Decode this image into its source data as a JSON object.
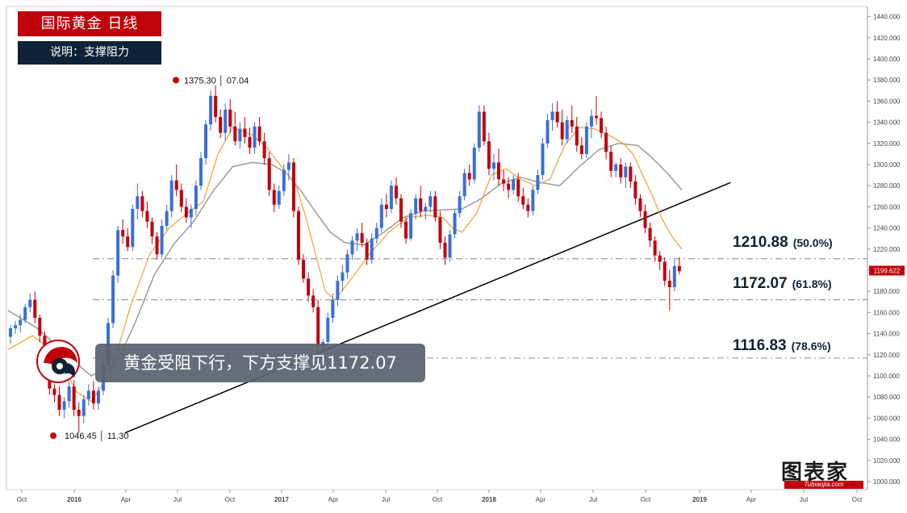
{
  "header": {
    "title": "国际黄金  日线",
    "subtitle": "说明：支撑阻力"
  },
  "callout": {
    "text": "黄金受阻下行，下方支撑见1172.07"
  },
  "annotations": {
    "high_label": "1375.30 │ 07.04",
    "low_label": "1046.45 │ 11.30"
  },
  "fib_levels": [
    {
      "value": "1210.88",
      "pct": "(50.0%)"
    },
    {
      "value": "1172.07",
      "pct": "(61.8%)"
    },
    {
      "value": "1116.83",
      "pct": "(78.6%)"
    }
  ],
  "brand": {
    "name": "图表家",
    "sub": "Tubiaojia.com"
  },
  "chart_data": {
    "type": "candlestick",
    "title": "国际黄金  日线",
    "ylim": [
      990,
      1447
    ],
    "y_ticks": [
      "1000.000",
      "1020.000",
      "1040.000",
      "1060.000",
      "1080.000",
      "1100.000",
      "1120.000",
      "1140.000",
      "1160.000",
      "1180.000",
      "1200.000",
      "1220.000",
      "1240.000",
      "1260.000",
      "1280.000",
      "1300.000",
      "1320.000",
      "1340.000",
      "1360.000",
      "1380.000",
      "1400.000",
      "1420.000",
      "1440.000"
    ],
    "x_ticks": [
      "Oct",
      "2016",
      "Apr",
      "Jul",
      "Oct",
      "2017",
      "Apr",
      "Jul",
      "Oct",
      "2018",
      "Apr",
      "Jul",
      "Oct",
      "2019",
      "Apr",
      "Jul",
      "Oct"
    ],
    "current_price": "1199.622",
    "colors": {
      "up": "#3a6fd8",
      "down": "#c0000b",
      "ma_fast": "#f5a742",
      "ma_slow": "#9b9b9b",
      "trendline": "#000000",
      "fib": "#9a9a9a"
    },
    "candles": [
      [
        1137,
        1148,
        1130,
        1145
      ],
      [
        1145,
        1152,
        1140,
        1148
      ],
      [
        1148,
        1158,
        1141,
        1153
      ],
      [
        1153,
        1168,
        1150,
        1165
      ],
      [
        1165,
        1178,
        1160,
        1172
      ],
      [
        1172,
        1180,
        1150,
        1155
      ],
      [
        1155,
        1158,
        1132,
        1138
      ],
      [
        1138,
        1142,
        1105,
        1110
      ],
      [
        1110,
        1115,
        1082,
        1088
      ],
      [
        1088,
        1092,
        1075,
        1082
      ],
      [
        1082,
        1090,
        1062,
        1068
      ],
      [
        1068,
        1080,
        1060,
        1076
      ],
      [
        1076,
        1095,
        1070,
        1090
      ],
      [
        1090,
        1096,
        1062,
        1068
      ],
      [
        1068,
        1075,
        1046,
        1062
      ],
      [
        1062,
        1082,
        1055,
        1078
      ],
      [
        1078,
        1092,
        1072,
        1086
      ],
      [
        1086,
        1095,
        1068,
        1074
      ],
      [
        1074,
        1090,
        1068,
        1086
      ],
      [
        1086,
        1115,
        1082,
        1110
      ],
      [
        1110,
        1155,
        1105,
        1150
      ],
      [
        1150,
        1200,
        1145,
        1195
      ],
      [
        1195,
        1242,
        1188,
        1238
      ],
      [
        1238,
        1248,
        1225,
        1232
      ],
      [
        1232,
        1240,
        1218,
        1222
      ],
      [
        1222,
        1262,
        1218,
        1258
      ],
      [
        1258,
        1282,
        1248,
        1270
      ],
      [
        1270,
        1275,
        1250,
        1256
      ],
      [
        1256,
        1265,
        1240,
        1246
      ],
      [
        1246,
        1250,
        1225,
        1232
      ],
      [
        1232,
        1236,
        1210,
        1215
      ],
      [
        1215,
        1248,
        1212,
        1242
      ],
      [
        1242,
        1262,
        1238,
        1256
      ],
      [
        1256,
        1290,
        1250,
        1285
      ],
      [
        1285,
        1300,
        1270,
        1276
      ],
      [
        1276,
        1282,
        1255,
        1260
      ],
      [
        1260,
        1268,
        1245,
        1250
      ],
      [
        1250,
        1262,
        1240,
        1258
      ],
      [
        1258,
        1285,
        1252,
        1280
      ],
      [
        1280,
        1312,
        1276,
        1306
      ],
      [
        1306,
        1342,
        1300,
        1338
      ],
      [
        1338,
        1370,
        1332,
        1365
      ],
      [
        1365,
        1375,
        1340,
        1345
      ],
      [
        1345,
        1352,
        1325,
        1330
      ],
      [
        1330,
        1358,
        1322,
        1352
      ],
      [
        1352,
        1362,
        1330,
        1336
      ],
      [
        1336,
        1350,
        1318,
        1322
      ],
      [
        1322,
        1340,
        1315,
        1334
      ],
      [
        1334,
        1345,
        1320,
        1326
      ],
      [
        1326,
        1335,
        1310,
        1316
      ],
      [
        1316,
        1340,
        1310,
        1336
      ],
      [
        1336,
        1345,
        1318,
        1322
      ],
      [
        1322,
        1330,
        1300,
        1306
      ],
      [
        1306,
        1312,
        1270,
        1276
      ],
      [
        1276,
        1282,
        1255,
        1262
      ],
      [
        1262,
        1280,
        1258,
        1275
      ],
      [
        1275,
        1300,
        1270,
        1295
      ],
      [
        1295,
        1310,
        1285,
        1302
      ],
      [
        1302,
        1306,
        1250,
        1256
      ],
      [
        1256,
        1260,
        1205,
        1210
      ],
      [
        1210,
        1215,
        1188,
        1192
      ],
      [
        1192,
        1198,
        1170,
        1176
      ],
      [
        1176,
        1182,
        1160,
        1165
      ],
      [
        1165,
        1172,
        1122,
        1128
      ],
      [
        1128,
        1135,
        1123,
        1132
      ],
      [
        1132,
        1160,
        1128,
        1155
      ],
      [
        1155,
        1178,
        1150,
        1172
      ],
      [
        1172,
        1195,
        1166,
        1190
      ],
      [
        1190,
        1205,
        1180,
        1198
      ],
      [
        1198,
        1220,
        1192,
        1215
      ],
      [
        1215,
        1232,
        1210,
        1228
      ],
      [
        1228,
        1240,
        1218,
        1235
      ],
      [
        1235,
        1245,
        1222,
        1226
      ],
      [
        1226,
        1230,
        1205,
        1210
      ],
      [
        1210,
        1235,
        1206,
        1230
      ],
      [
        1230,
        1245,
        1225,
        1240
      ],
      [
        1240,
        1268,
        1236,
        1262
      ],
      [
        1262,
        1272,
        1250,
        1258
      ],
      [
        1258,
        1285,
        1254,
        1280
      ],
      [
        1280,
        1288,
        1262,
        1268
      ],
      [
        1268,
        1272,
        1240,
        1246
      ],
      [
        1246,
        1250,
        1225,
        1230
      ],
      [
        1230,
        1258,
        1228,
        1254
      ],
      [
        1254,
        1272,
        1248,
        1268
      ],
      [
        1268,
        1280,
        1250,
        1256
      ],
      [
        1256,
        1264,
        1248,
        1260
      ],
      [
        1260,
        1275,
        1255,
        1270
      ],
      [
        1270,
        1275,
        1246,
        1250
      ],
      [
        1250,
        1256,
        1220,
        1226
      ],
      [
        1226,
        1232,
        1205,
        1212
      ],
      [
        1212,
        1238,
        1208,
        1234
      ],
      [
        1234,
        1258,
        1230,
        1254
      ],
      [
        1254,
        1275,
        1250,
        1270
      ],
      [
        1270,
        1296,
        1266,
        1292
      ],
      [
        1292,
        1300,
        1280,
        1286
      ],
      [
        1286,
        1320,
        1282,
        1316
      ],
      [
        1316,
        1356,
        1312,
        1350
      ],
      [
        1350,
        1356,
        1318,
        1322
      ],
      [
        1322,
        1330,
        1290,
        1296
      ],
      [
        1296,
        1310,
        1285,
        1302
      ],
      [
        1302,
        1315,
        1280,
        1286
      ],
      [
        1286,
        1295,
        1275,
        1282
      ],
      [
        1282,
        1288,
        1268,
        1276
      ],
      [
        1276,
        1290,
        1272,
        1286
      ],
      [
        1286,
        1292,
        1265,
        1270
      ],
      [
        1270,
        1278,
        1258,
        1262
      ],
      [
        1262,
        1268,
        1250,
        1256
      ],
      [
        1256,
        1280,
        1252,
        1276
      ],
      [
        1276,
        1295,
        1272,
        1290
      ],
      [
        1290,
        1325,
        1286,
        1320
      ],
      [
        1320,
        1348,
        1316,
        1342
      ],
      [
        1342,
        1358,
        1332,
        1350
      ],
      [
        1350,
        1360,
        1335,
        1340
      ],
      [
        1340,
        1352,
        1318,
        1324
      ],
      [
        1324,
        1346,
        1320,
        1342
      ],
      [
        1342,
        1356,
        1330,
        1336
      ],
      [
        1336,
        1345,
        1312,
        1318
      ],
      [
        1318,
        1326,
        1305,
        1310
      ],
      [
        1310,
        1340,
        1306,
        1336
      ],
      [
        1336,
        1352,
        1325,
        1346
      ],
      [
        1346,
        1365,
        1338,
        1344
      ],
      [
        1344,
        1350,
        1325,
        1330
      ],
      [
        1330,
        1336,
        1305,
        1312
      ],
      [
        1312,
        1318,
        1288,
        1294
      ],
      [
        1294,
        1302,
        1288,
        1300
      ],
      [
        1300,
        1306,
        1282,
        1288
      ],
      [
        1288,
        1302,
        1278,
        1298
      ],
      [
        1298,
        1302,
        1278,
        1284
      ],
      [
        1284,
        1290,
        1262,
        1268
      ],
      [
        1268,
        1272,
        1250,
        1256
      ],
      [
        1256,
        1262,
        1235,
        1240
      ],
      [
        1240,
        1245,
        1222,
        1228
      ],
      [
        1228,
        1232,
        1208,
        1214
      ],
      [
        1214,
        1218,
        1200,
        1208
      ],
      [
        1208,
        1212,
        1185,
        1190
      ],
      [
        1190,
        1200,
        1162,
        1184
      ],
      [
        1184,
        1210,
        1180,
        1204
      ],
      [
        1204,
        1212,
        1196,
        1199
      ]
    ],
    "ma_fast": [
      [
        0,
        1125
      ],
      [
        5,
        1138
      ],
      [
        10,
        1120
      ],
      [
        14,
        1085
      ],
      [
        17,
        1076
      ],
      [
        21,
        1102
      ],
      [
        25,
        1165
      ],
      [
        29,
        1215
      ],
      [
        33,
        1240
      ],
      [
        37,
        1255
      ],
      [
        40,
        1265
      ],
      [
        43,
        1310
      ],
      [
        46,
        1335
      ],
      [
        50,
        1328
      ],
      [
        53,
        1316
      ],
      [
        56,
        1298
      ],
      [
        59,
        1280
      ],
      [
        61,
        1250
      ],
      [
        63,
        1215
      ],
      [
        65,
        1180
      ],
      [
        67,
        1172
      ],
      [
        70,
        1190
      ],
      [
        74,
        1215
      ],
      [
        78,
        1236
      ],
      [
        82,
        1250
      ],
      [
        86,
        1252
      ],
      [
        89,
        1250
      ],
      [
        91,
        1240
      ],
      [
        93,
        1236
      ],
      [
        96,
        1254
      ],
      [
        99,
        1290
      ],
      [
        102,
        1296
      ],
      [
        105,
        1286
      ],
      [
        108,
        1280
      ],
      [
        111,
        1286
      ],
      [
        114,
        1318
      ],
      [
        117,
        1335
      ],
      [
        120,
        1334
      ],
      [
        123,
        1328
      ],
      [
        126,
        1320
      ],
      [
        128,
        1310
      ],
      [
        130,
        1290
      ],
      [
        132,
        1270
      ],
      [
        134,
        1248
      ],
      [
        136,
        1232
      ],
      [
        138,
        1220
      ]
    ],
    "ma_slow": [
      [
        0,
        1162
      ],
      [
        6,
        1145
      ],
      [
        12,
        1120
      ],
      [
        17,
        1100
      ],
      [
        22,
        1110
      ],
      [
        26,
        1150
      ],
      [
        30,
        1196
      ],
      [
        34,
        1225
      ],
      [
        38,
        1246
      ],
      [
        42,
        1275
      ],
      [
        46,
        1298
      ],
      [
        50,
        1302
      ],
      [
        54,
        1300
      ],
      [
        57,
        1292
      ],
      [
        60,
        1275
      ],
      [
        63,
        1255
      ],
      [
        66,
        1236
      ],
      [
        69,
        1226
      ],
      [
        73,
        1224
      ],
      [
        77,
        1236
      ],
      [
        81,
        1250
      ],
      [
        85,
        1256
      ],
      [
        89,
        1257
      ],
      [
        93,
        1258
      ],
      [
        97,
        1268
      ],
      [
        101,
        1282
      ],
      [
        105,
        1288
      ],
      [
        109,
        1283
      ],
      [
        113,
        1280
      ],
      [
        117,
        1298
      ],
      [
        121,
        1314
      ],
      [
        125,
        1320
      ],
      [
        129,
        1318
      ],
      [
        132,
        1306
      ],
      [
        135,
        1292
      ],
      [
        138,
        1276
      ]
    ],
    "trendline": [
      [
        15,
        1046
      ],
      [
        148,
        1283
      ]
    ],
    "fib_lines": [
      1210.88,
      1172.07,
      1116.83
    ]
  }
}
